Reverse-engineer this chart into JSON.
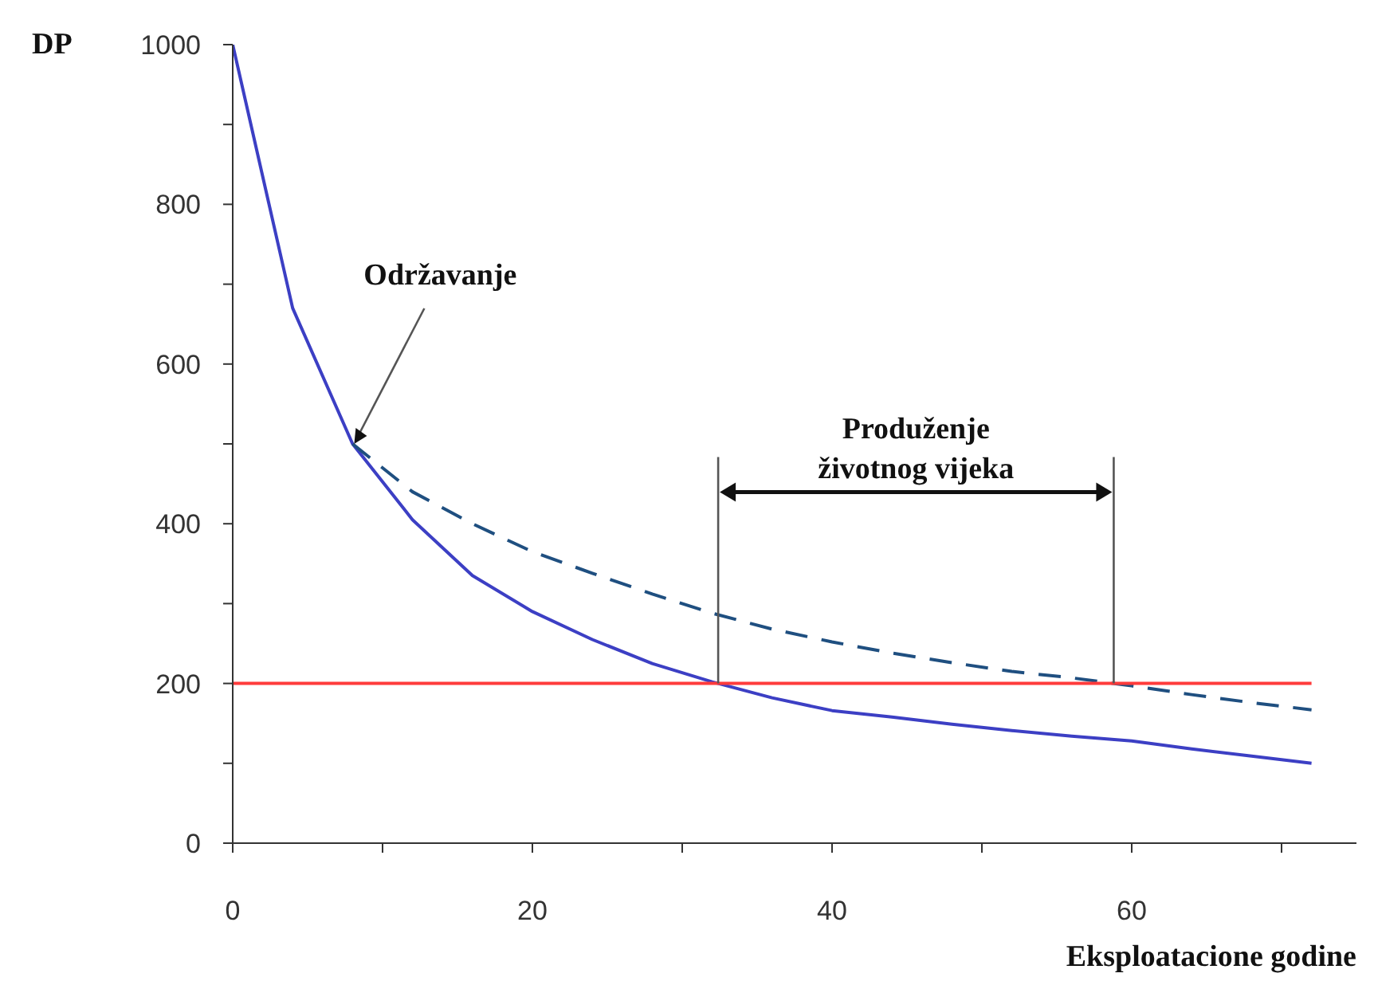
{
  "chart_data": {
    "type": "line",
    "ylabel": "DP",
    "xlabel": "Eksploatacione godine",
    "xlim": [
      0,
      75
    ],
    "xticks": [
      0,
      {
        "value": 10,
        "label": null
      },
      20,
      {
        "value": 30,
        "label": null
      },
      40,
      {
        "value": 50,
        "label": null
      },
      60,
      {
        "value": 70,
        "label": null
      }
    ],
    "ylim": [
      0,
      1000
    ],
    "yticks": [
      0,
      {
        "value": 100,
        "label": null
      },
      200,
      {
        "value": 300,
        "label": null
      },
      400,
      {
        "value": 500,
        "label": null
      },
      600,
      {
        "value": 700,
        "label": null
      },
      800,
      {
        "value": 900,
        "label": null
      },
      1000
    ],
    "marker": "none",
    "series": [
      {
        "color": "#3c3fc4",
        "line_style": "solid",
        "x": [
          0,
          4,
          8,
          12,
          16,
          20,
          24,
          28,
          32,
          36,
          40,
          44,
          48,
          52,
          56,
          60,
          64,
          68,
          72
        ],
        "values": [
          1000,
          670,
          500,
          405,
          335,
          290,
          255,
          225,
          202,
          182,
          166,
          158,
          149,
          141,
          134,
          128,
          118,
          109,
          100
        ]
      },
      {
        "color": "#1f4f80",
        "line_style": "dashed",
        "x": [
          8,
          12,
          16,
          20,
          24,
          28,
          32,
          36,
          40,
          44,
          48,
          52,
          56,
          60,
          64,
          68,
          72
        ],
        "values": [
          500,
          440,
          400,
          365,
          338,
          312,
          288,
          268,
          252,
          238,
          226,
          215,
          207,
          197,
          186,
          176,
          167
        ]
      },
      {
        "color": "#ff3b3b",
        "line_style": "solid",
        "x": [
          0,
          72
        ],
        "values": [
          200,
          200
        ]
      }
    ],
    "annotations": [
      {
        "text": "Održavanje",
        "x": 8,
        "y": 500
      },
      "Produženje životnog vijeka"
    ]
  }
}
